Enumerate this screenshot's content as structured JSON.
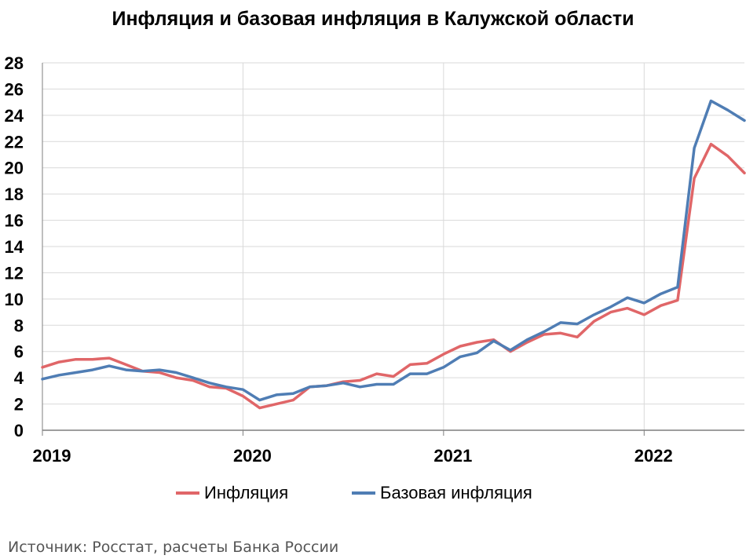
{
  "chart_data": {
    "type": "line",
    "title": "Инфляция и базовая инфляция в Калужской области",
    "xlabel": "",
    "ylabel": "",
    "ylim": [
      0,
      28
    ],
    "yticks": [
      "0",
      "2",
      "4",
      "6",
      "8",
      "10",
      "12",
      "14",
      "16",
      "18",
      "20",
      "22",
      "24",
      "26",
      "28"
    ],
    "xticks": [
      "2019",
      "2020",
      "2021",
      "2022"
    ],
    "grid": true,
    "legend_position": "bottom",
    "series": [
      {
        "name": "Инфляция",
        "color": "#e06668",
        "values": [
          4.8,
          5.2,
          5.4,
          5.4,
          5.5,
          5.0,
          4.5,
          4.4,
          4.0,
          3.8,
          3.3,
          3.2,
          2.6,
          1.7,
          2.0,
          2.3,
          3.3,
          3.4,
          3.7,
          3.8,
          4.3,
          4.1,
          5.0,
          5.1,
          5.8,
          6.4,
          6.7,
          6.9,
          6.0,
          6.7,
          7.3,
          7.4,
          7.1,
          8.3,
          9.0,
          9.3,
          8.8,
          9.5,
          9.9,
          19.2,
          21.8,
          20.9,
          19.6
        ]
      },
      {
        "name": "Базовая инфляция",
        "color": "#4f7db4",
        "values": [
          3.9,
          4.2,
          4.4,
          4.6,
          4.9,
          4.6,
          4.5,
          4.6,
          4.4,
          4.0,
          3.6,
          3.3,
          3.1,
          2.3,
          2.7,
          2.8,
          3.3,
          3.4,
          3.6,
          3.3,
          3.5,
          3.5,
          4.3,
          4.3,
          4.8,
          5.6,
          5.9,
          6.8,
          6.1,
          6.9,
          7.5,
          8.2,
          8.1,
          8.8,
          9.4,
          10.1,
          9.7,
          10.4,
          10.9,
          21.5,
          25.1,
          24.4,
          23.6
        ]
      }
    ]
  },
  "source_text": "Источник: Росстат, расчеты Банка России"
}
